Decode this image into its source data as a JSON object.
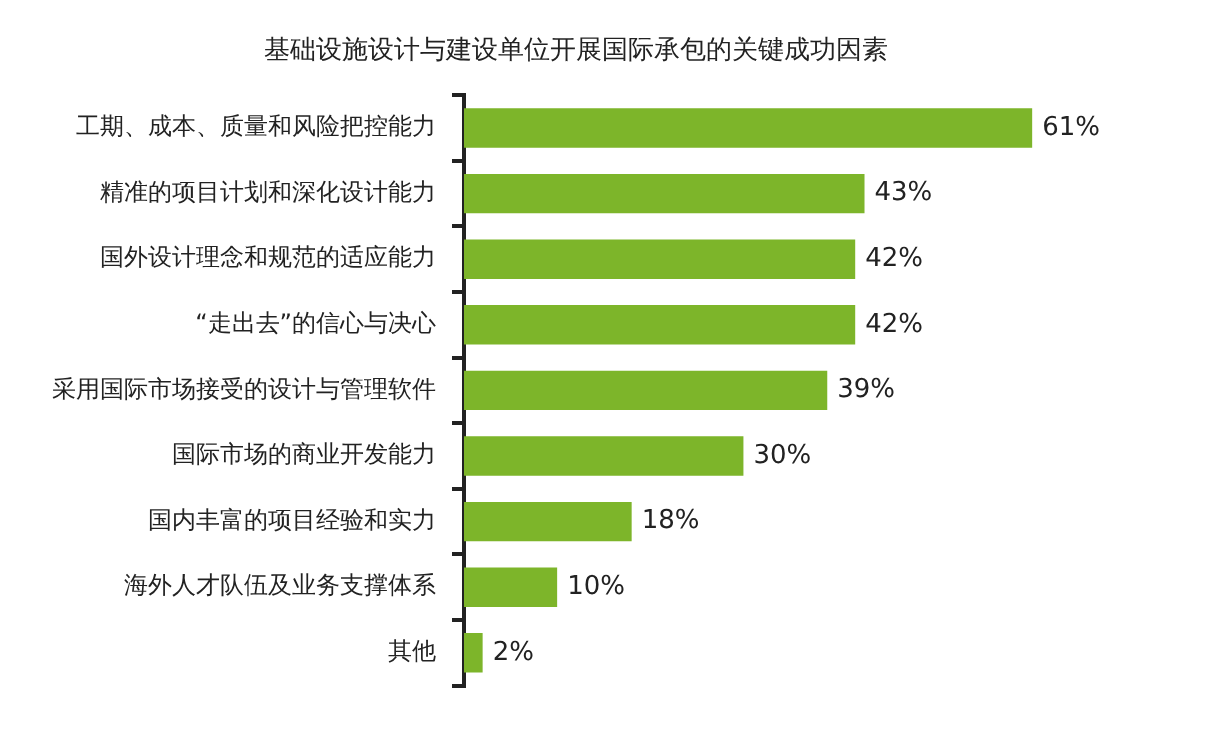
{
  "chart_data": {
    "type": "bar",
    "orientation": "horizontal",
    "title": "基础设施设计与建设单位开展国际承包的关键成功因素",
    "categories": [
      "工期、成本、质量和风险把控能力",
      "精准的项目计划和深化设计能力",
      "国外设计理念和规范的适应能力",
      "“走出去”的信心与决心",
      "采用国际市场接受的设计与管理软件",
      "国际市场的商业开发能力",
      "国内丰富的项目经验和实力",
      "海外人才队伍及业务支撑体系",
      "其他"
    ],
    "values": [
      61,
      43,
      42,
      42,
      39,
      30,
      18,
      10,
      2
    ],
    "value_labels": [
      "61%",
      "43%",
      "42%",
      "42%",
      "39%",
      "30%",
      "18%",
      "10%",
      "2%"
    ],
    "color": "#7db52a",
    "grid": false,
    "legend": false
  }
}
